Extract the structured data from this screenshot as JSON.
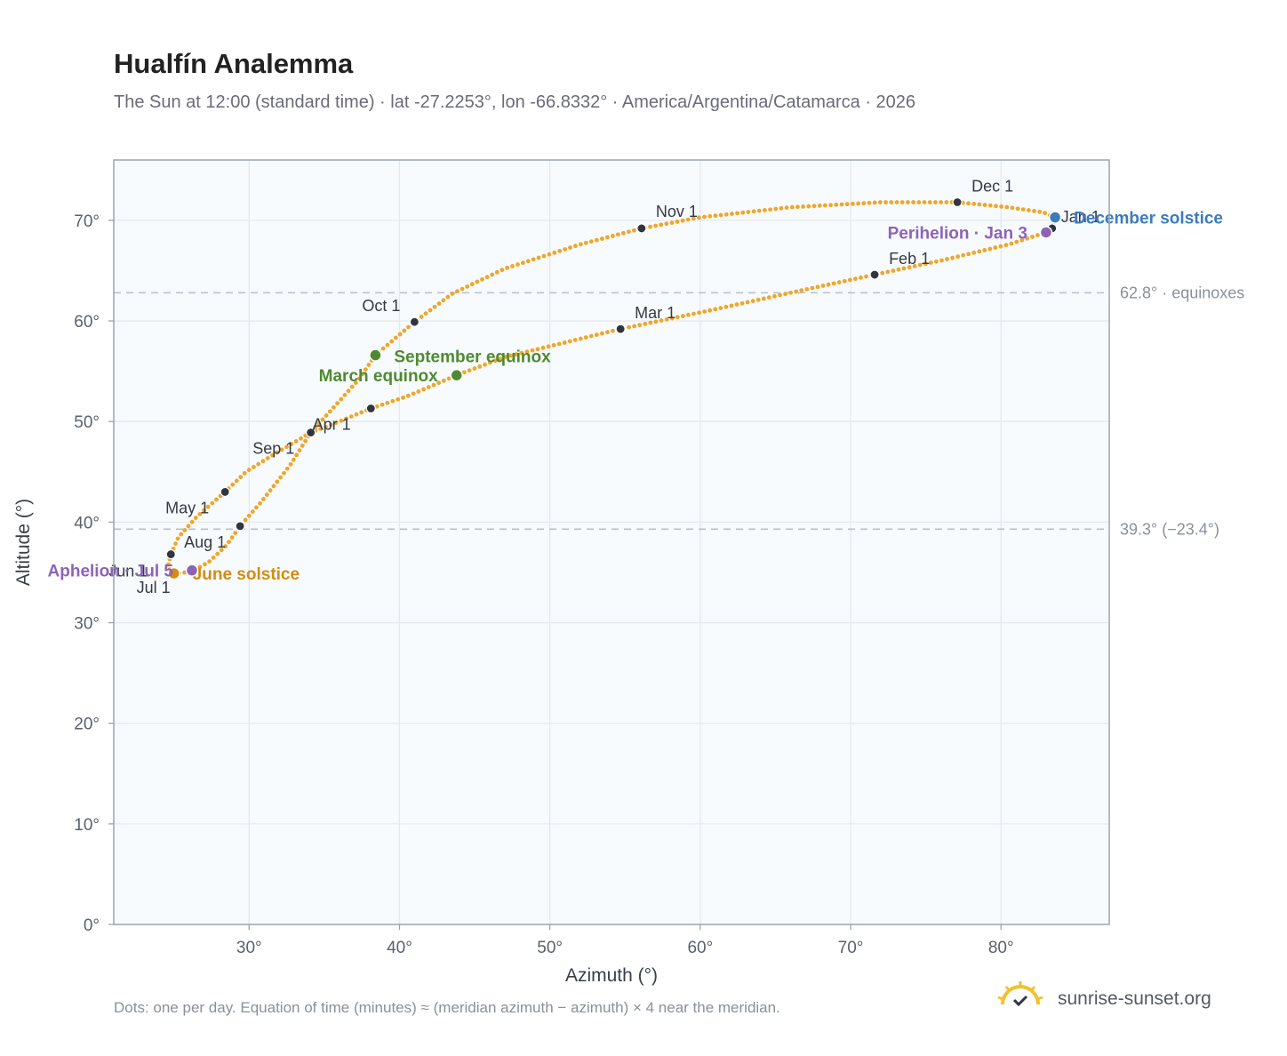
{
  "header": {
    "title": "Hualfín Analemma",
    "subtitle": "The Sun at 12:00 (standard time) · lat -27.2253°, lon -66.8332° · America/Argentina/Catamarca · 2026"
  },
  "footer": {
    "note": "Dots: one per day. Equation of time (minutes) ≈ (meridian azimuth − azimuth) × 4 near the meridian.",
    "brand": "sunrise-sunset.org"
  },
  "colors": {
    "curve": "#f0a62a",
    "month_marker": "#2f3642",
    "equinox": "#4d8b32",
    "june_solstice": "#d48c12",
    "december_solstice": "#3b7bbf",
    "apsis": "#8d63b8",
    "reference_line": "#b4c0cc",
    "plot_bg": "#f8fbfd",
    "grid": "#e4e9ef"
  },
  "chart_data": {
    "type": "scatter",
    "xlabel": "Azimuth (°)",
    "ylabel": "Altitude (°)",
    "xlim": [
      21,
      87.2
    ],
    "ylim": [
      0,
      76
    ],
    "grid": true,
    "x_ticks": [
      30,
      40,
      50,
      60,
      70,
      80
    ],
    "y_ticks": [
      0,
      10,
      20,
      30,
      40,
      50,
      60,
      70
    ],
    "x_tick_suffix": "°",
    "y_tick_suffix": "°",
    "path": [
      [
        83.6,
        70.3
      ],
      [
        83.4,
        69.2
      ],
      [
        83.0,
        68.8
      ],
      [
        80.5,
        67.6
      ],
      [
        76.0,
        66.0
      ],
      [
        71.6,
        64.6
      ],
      [
        66.0,
        62.8
      ],
      [
        60.5,
        61.0
      ],
      [
        54.7,
        59.2
      ],
      [
        47.0,
        56.4
      ],
      [
        43.8,
        54.6
      ],
      [
        40.5,
        52.5
      ],
      [
        38.1,
        51.3
      ],
      [
        36.0,
        50.0
      ],
      [
        34.1,
        48.9
      ],
      [
        31.5,
        46.6
      ],
      [
        29.8,
        45.0
      ],
      [
        28.4,
        43.0
      ],
      [
        26.5,
        40.5
      ],
      [
        25.3,
        38.5
      ],
      [
        24.8,
        36.8
      ],
      [
        24.6,
        35.6
      ],
      [
        24.8,
        35.1
      ],
      [
        25.0,
        34.9
      ],
      [
        25.8,
        35.0
      ],
      [
        26.3,
        35.2
      ],
      [
        27.3,
        36.0
      ],
      [
        28.5,
        37.7
      ],
      [
        29.4,
        39.6
      ],
      [
        30.8,
        42.0
      ],
      [
        32.7,
        45.6
      ],
      [
        34.1,
        48.9
      ],
      [
        35.5,
        51.2
      ],
      [
        37.3,
        54.2
      ],
      [
        38.4,
        56.6
      ],
      [
        41.0,
        59.9
      ],
      [
        43.5,
        62.7
      ],
      [
        47.0,
        65.2
      ],
      [
        52.0,
        67.6
      ],
      [
        56.1,
        69.2
      ],
      [
        60.0,
        70.3
      ],
      [
        66.0,
        71.3
      ],
      [
        72.0,
        71.8
      ],
      [
        77.1,
        71.8
      ],
      [
        80.5,
        71.3
      ],
      [
        82.8,
        70.8
      ],
      [
        83.6,
        70.3
      ]
    ],
    "month_markers": [
      {
        "label": "Jan 1",
        "x": 83.4,
        "y": 69.2,
        "anchor": "start",
        "dx": 10,
        "dy": -7
      },
      {
        "label": "Feb 1",
        "x": 71.6,
        "y": 64.6,
        "anchor": "start",
        "dx": 16,
        "dy": -12
      },
      {
        "label": "Mar 1",
        "x": 54.7,
        "y": 59.2,
        "anchor": "start",
        "dx": 16,
        "dy": -12
      },
      {
        "label": "Apr 1",
        "x": 34.1,
        "y": 48.9,
        "anchor": "start",
        "dx": 2,
        "dy": -3
      },
      {
        "label": "May 1",
        "x": 28.4,
        "y": 43.0,
        "anchor": "end",
        "dx": -18,
        "dy": 24
      },
      {
        "label": "Jun 1",
        "x": 24.8,
        "y": 36.8,
        "anchor": "end",
        "dx": -26,
        "dy": 25
      },
      {
        "label": "Jul 1",
        "x": 25.0,
        "y": 34.9,
        "anchor": "end",
        "dx": -4,
        "dy": 22
      },
      {
        "label": "Aug 1",
        "x": 29.4,
        "y": 39.6,
        "anchor": "end",
        "dx": -16,
        "dy": 24
      },
      {
        "label": "Sep 1",
        "x": 38.1,
        "y": 51.3,
        "anchor": "end",
        "dx": -86,
        "dy": 51
      },
      {
        "label": "Oct 1",
        "x": 41.0,
        "y": 59.9,
        "anchor": "end",
        "dx": -16,
        "dy": -12
      },
      {
        "label": "Nov 1",
        "x": 56.1,
        "y": 69.2,
        "anchor": "start",
        "dx": 16,
        "dy": -13
      },
      {
        "label": "Dec 1",
        "x": 77.1,
        "y": 71.8,
        "anchor": "start",
        "dx": 16,
        "dy": -12
      }
    ],
    "events": [
      {
        "label": "March equinox",
        "x": 43.8,
        "y": 54.6,
        "color": "#4d8b32",
        "anchor": "end",
        "dx": -21,
        "dy": 7
      },
      {
        "label": "September equinox",
        "x": 38.4,
        "y": 56.6,
        "color": "#4d8b32",
        "anchor": "start",
        "dx": 21,
        "dy": 8
      },
      {
        "label": "June solstice",
        "x": 25.0,
        "y": 34.9,
        "color": "#d48c12",
        "anchor": "start",
        "dx": 21,
        "dy": 7
      },
      {
        "label": "December solstice",
        "x": 83.6,
        "y": 70.3,
        "color": "#3b7bbf",
        "anchor": "start",
        "dx": 21,
        "dy": 7
      },
      {
        "label": "Aphelion · Jul 5",
        "x": 26.2,
        "y": 35.2,
        "color": "#8d63b8",
        "anchor": "end",
        "dx": -21,
        "dy": 7
      },
      {
        "label": "Perihelion · Jan 3",
        "x": 83.0,
        "y": 68.8,
        "color": "#8d63b8",
        "anchor": "end",
        "dx": -21,
        "dy": 7
      }
    ],
    "reference_lines": [
      {
        "y": 62.8,
        "label": "62.8° · equinoxes"
      },
      {
        "y": 39.3,
        "label": "39.3° (−23.4°)"
      }
    ]
  }
}
